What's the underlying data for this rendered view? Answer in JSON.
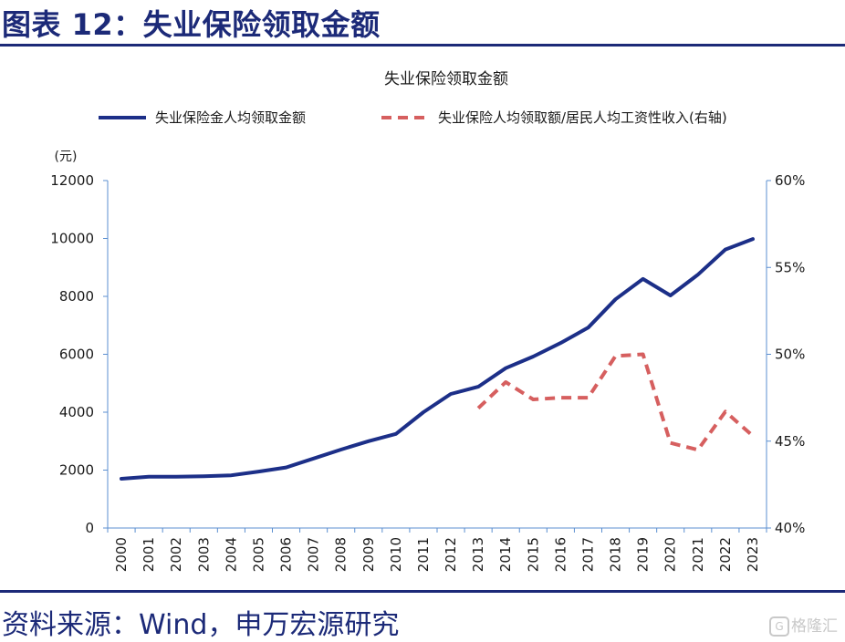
{
  "figure_title": "图表 12：失业保险领取金额",
  "source": "资料来源：Wind，申万宏源研究",
  "watermark": "格隆汇",
  "colors": {
    "header": "#1c2a78",
    "series1": "#1c2f88",
    "series2": "#d65f5f",
    "axis": "#5b8fd0"
  },
  "chart_data": {
    "type": "line",
    "title": "失业保险领取金额",
    "left_unit": "(元)",
    "x": [
      "2000",
      "2001",
      "2002",
      "2003",
      "2004",
      "2005",
      "2006",
      "2007",
      "2008",
      "2009",
      "2010",
      "2011",
      "2012",
      "2013",
      "2014",
      "2015",
      "2016",
      "2017",
      "2018",
      "2019",
      "2020",
      "2021",
      "2022",
      "2023"
    ],
    "y_left": {
      "range": [
        0,
        12000
      ],
      "ticks": [
        "0",
        "2000",
        "4000",
        "6000",
        "8000",
        "10000",
        "12000"
      ]
    },
    "y_right": {
      "range": [
        40,
        60
      ],
      "ticks": [
        "40%",
        "45%",
        "50%",
        "55%",
        "60%"
      ]
    },
    "legend_position": "top",
    "grid": false,
    "series": [
      {
        "name": "失业保险金人均领取金额",
        "axis": "left",
        "style": "solid",
        "values": [
          1700,
          1770,
          1770,
          1790,
          1820,
          1950,
          2090,
          2400,
          2710,
          3000,
          3250,
          4000,
          4630,
          4880,
          5520,
          5920,
          6390,
          6920,
          7900,
          8600,
          8030,
          8750,
          9620,
          9980
        ]
      },
      {
        "name": "失业保险人均领取额/居民人均工资性收入(右轴)",
        "axis": "right",
        "style": "dashed",
        "values": [
          null,
          null,
          null,
          null,
          null,
          null,
          null,
          null,
          null,
          null,
          null,
          null,
          null,
          46.9,
          48.4,
          47.4,
          47.5,
          47.5,
          49.9,
          50.0,
          44.9,
          44.5,
          46.7,
          45.3
        ]
      }
    ]
  }
}
